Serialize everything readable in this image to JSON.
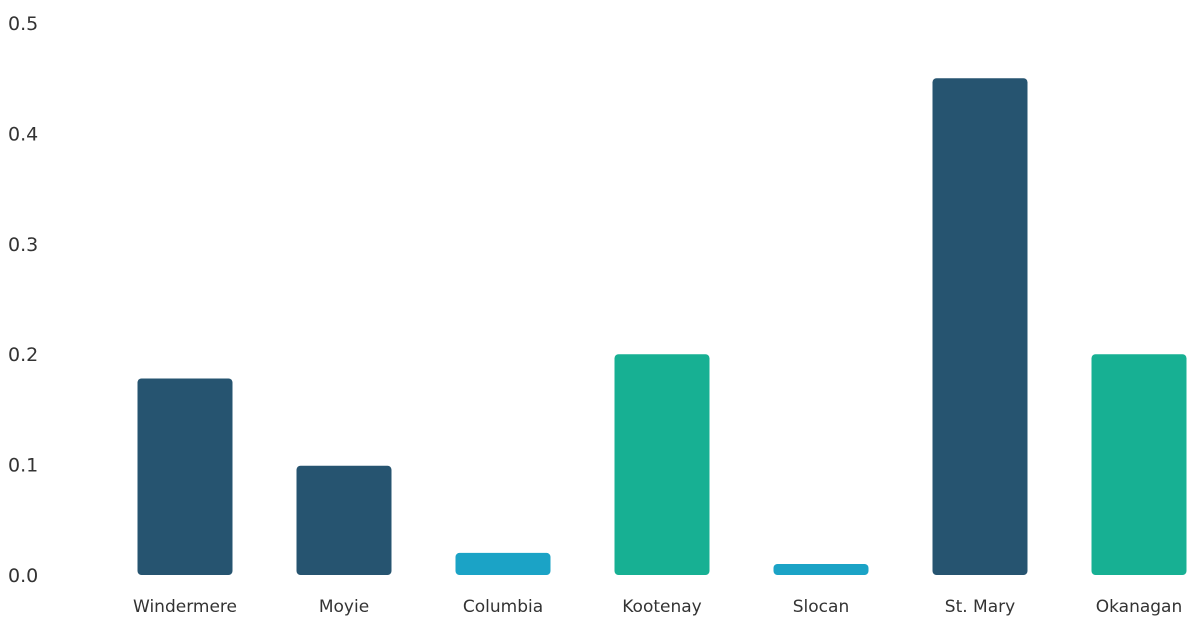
{
  "chart_data": {
    "type": "bar",
    "title": "",
    "xlabel": "",
    "ylabel": "",
    "ylim": [
      0,
      0.5
    ],
    "yticks": [
      "0.0",
      "0.1",
      "0.2",
      "0.3",
      "0.4",
      "0.5"
    ],
    "grid": false,
    "legend": "none",
    "categories": [
      "Windermere",
      "Moyie",
      "Columbia",
      "Kootenay",
      "Slocan",
      "St. Mary",
      "Okanagan"
    ],
    "values": [
      0.178,
      0.099,
      0.02,
      0.2,
      0.01,
      0.45,
      0.2
    ],
    "bar_colors": [
      "#265470",
      "#265470",
      "#1ba3c6",
      "#17b093",
      "#1ba3c6",
      "#265470",
      "#17b093"
    ]
  }
}
